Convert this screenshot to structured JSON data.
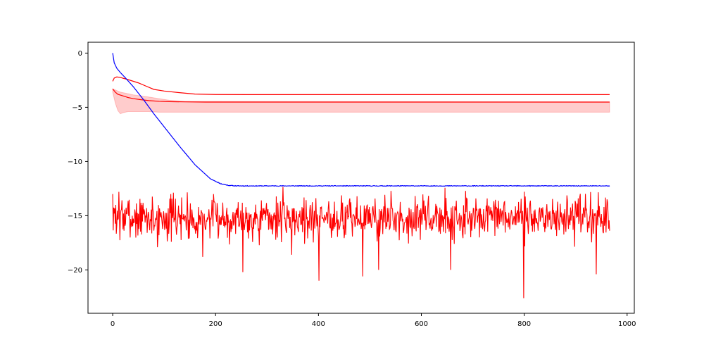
{
  "chart_data": {
    "type": "line",
    "title": "",
    "xlabel": "",
    "ylabel": "",
    "xlim": [
      -48,
      1014
    ],
    "ylim": [
      -24,
      1
    ],
    "x_ticks": [
      0,
      200,
      400,
      600,
      800,
      1000
    ],
    "y_ticks": [
      0,
      -5,
      -10,
      -15,
      -20
    ],
    "x_tick_labels": [
      "0",
      "200",
      "400",
      "600",
      "800",
      "1000"
    ],
    "y_tick_labels": [
      "0",
      "−5",
      "−10",
      "−15",
      "−20"
    ],
    "grid": false,
    "legend": "none",
    "x_max": 966,
    "series": [
      {
        "kind": "band",
        "color": "#ff0000",
        "opacity": 0.2,
        "x": [
          0,
          5,
          10,
          15,
          20,
          30,
          40,
          55,
          70,
          90,
          110,
          140,
          966
        ],
        "lower": [
          -3.6,
          -4.6,
          -5.3,
          -5.6,
          -5.5,
          -5.4,
          -5.4,
          -5.4,
          -5.4,
          -5.45,
          -5.45,
          -5.45,
          -5.45
        ],
        "upper": [
          -3.3,
          -3.4,
          -3.5,
          -3.6,
          -3.65,
          -3.75,
          -3.85,
          -3.95,
          -4.05,
          -4.2,
          -4.35,
          -4.45,
          -4.5
        ]
      },
      {
        "kind": "line",
        "color": "#ff0000",
        "x": [
          0,
          5,
          10,
          20,
          30,
          40,
          55,
          70,
          90,
          110,
          140,
          180,
          250,
          966
        ],
        "y": [
          -3.3,
          -3.6,
          -3.8,
          -3.95,
          -4.1,
          -4.2,
          -4.3,
          -4.38,
          -4.45,
          -4.48,
          -4.5,
          -4.52,
          -4.52,
          -4.52
        ]
      },
      {
        "kind": "line",
        "color": "#ff0000",
        "x": [
          0,
          3,
          8,
          15,
          30,
          50,
          65,
          80,
          100,
          130,
          160,
          200,
          260,
          966
        ],
        "y": [
          -2.6,
          -2.3,
          -2.2,
          -2.25,
          -2.45,
          -2.75,
          -3.05,
          -3.35,
          -3.5,
          -3.65,
          -3.78,
          -3.82,
          -3.83,
          -3.83
        ]
      },
      {
        "kind": "line",
        "color": "#0000ff",
        "x": [
          0,
          3,
          8,
          15,
          25,
          40,
          60,
          80,
          100,
          130,
          160,
          190,
          210,
          225,
          240,
          260,
          966
        ],
        "y": [
          0.0,
          -0.9,
          -1.4,
          -1.8,
          -2.3,
          -3.1,
          -4.3,
          -5.6,
          -6.8,
          -8.6,
          -10.3,
          -11.6,
          -12.05,
          -12.2,
          -12.25,
          -12.25,
          -12.25
        ],
        "noise": 0.03
      },
      {
        "kind": "noise",
        "color": "#ff0000",
        "n": 967,
        "mean": -15.2,
        "amplitude": 1.0,
        "seed": 7,
        "start": [
          [
            0,
            -13.0
          ],
          [
            3,
            -14.8
          ],
          [
            6,
            -14.0
          ]
        ],
        "spikes": [
          [
            12,
            -12.8
          ],
          [
            87,
            -17.9
          ],
          [
            175,
            -18.8
          ],
          [
            253,
            -20.2
          ],
          [
            348,
            -18.6
          ],
          [
            401,
            -21.0
          ],
          [
            486,
            -20.6
          ],
          [
            517,
            -20.0
          ],
          [
            657,
            -20.0
          ],
          [
            799,
            -22.6
          ],
          [
            940,
            -20.4
          ],
          [
            964,
            -16.2
          ]
        ]
      }
    ]
  }
}
